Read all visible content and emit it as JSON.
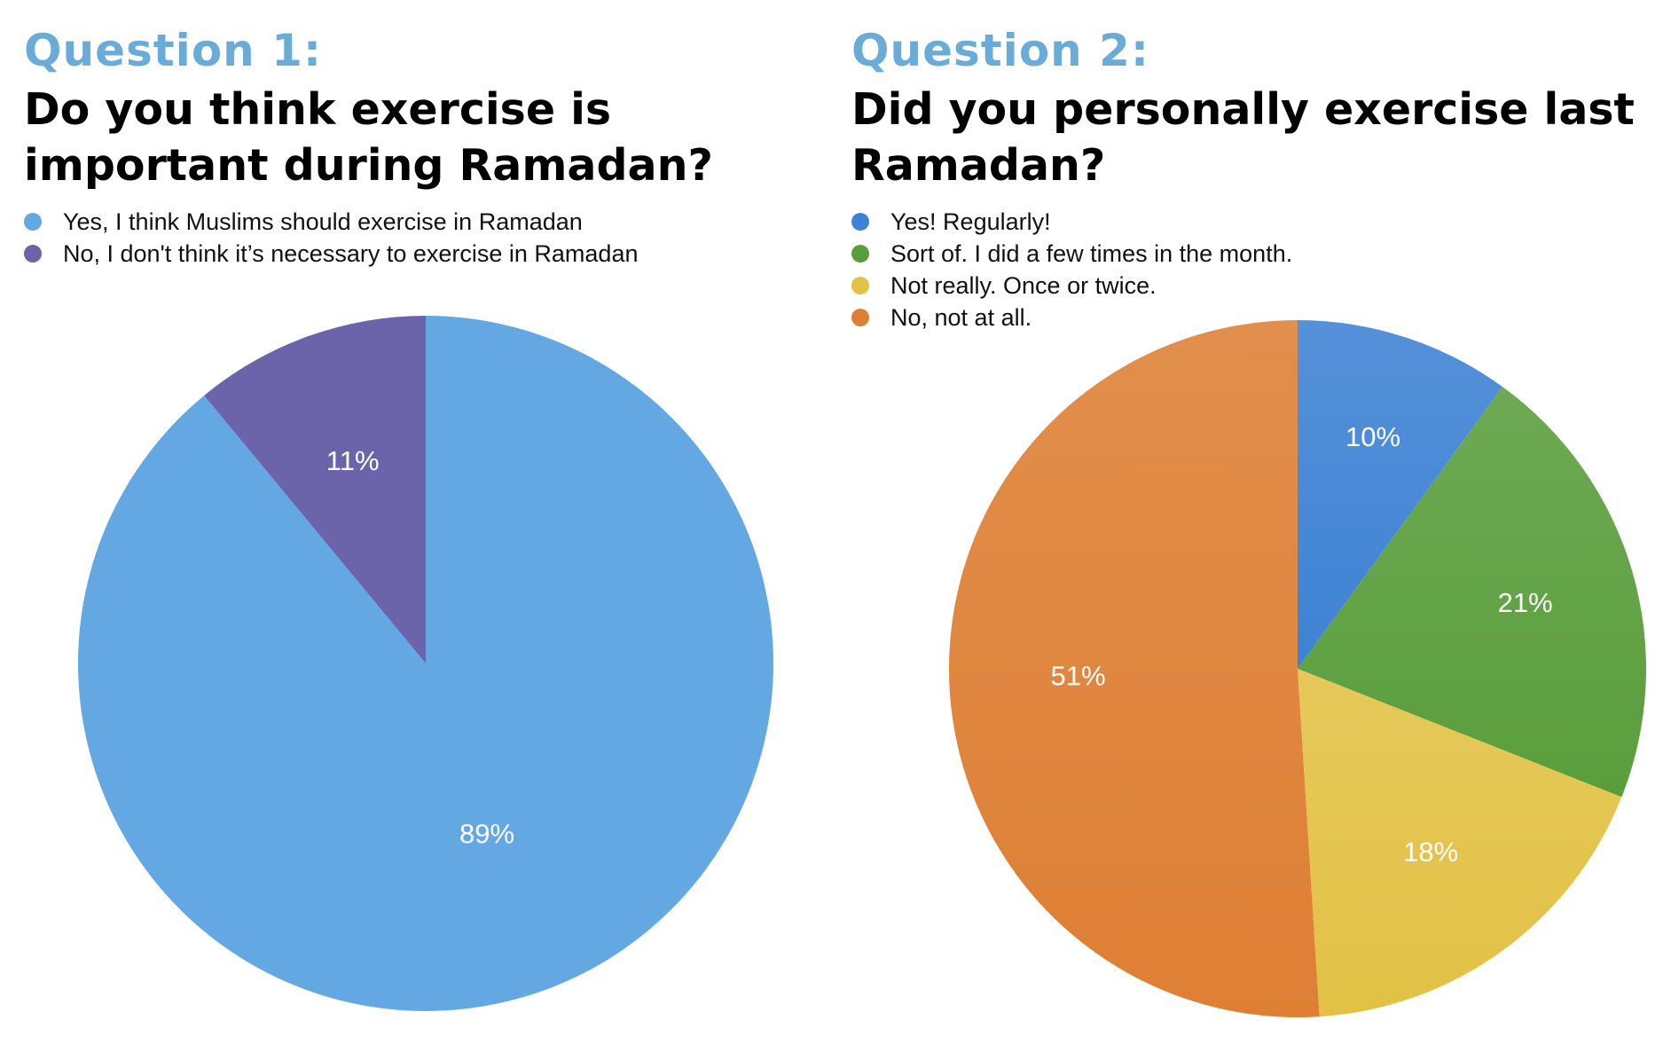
{
  "questions": [
    {
      "label": "Question 1:",
      "title": "Do you think exercise is important during Ramadan?"
    },
    {
      "label": "Question 2:",
      "title": "Did you personally exercise last Ramadan?"
    }
  ],
  "colors": {
    "question_label": "#6aabd8",
    "q1_yes": "#64a8e3",
    "q1_no": "#6b64ab",
    "q2_regularly": "#3e82d4",
    "q2_sort_of": "#5a9e3c",
    "q2_not_really": "#e2c144",
    "q2_not_at_all": "#de7f34"
  },
  "chart_data": [
    {
      "type": "pie",
      "title": "Do you think exercise is important during Ramadan?",
      "categories": [
        "Yes, I think Muslims should exercise in Ramadan",
        "No, I don't think it’s necessary to exercise in Ramadan"
      ],
      "values": [
        89,
        11
      ],
      "labels": [
        "89%",
        "11%"
      ],
      "colors": [
        "#64a8e3",
        "#6b64ab"
      ],
      "legend": "top-left"
    },
    {
      "type": "pie",
      "title": "Did you personally exercise last Ramadan?",
      "categories": [
        "Yes! Regularly!",
        "Sort of. I did a few times in the month.",
        "Not really. Once or twice.",
        "No, not at all."
      ],
      "values": [
        10,
        21,
        18,
        51
      ],
      "labels": [
        "10%",
        "21%",
        "18%",
        "51%"
      ],
      "colors": [
        "#3e82d4",
        "#5a9e3c",
        "#e2c144",
        "#de7f34"
      ],
      "legend": "top-left"
    }
  ]
}
